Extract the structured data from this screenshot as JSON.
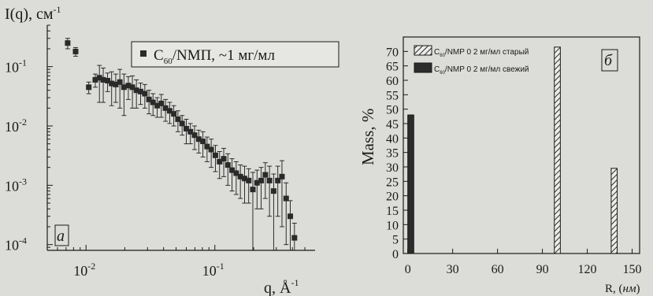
{
  "chart_data": [
    {
      "panel": "а",
      "type": "scatter",
      "ylabel": "I(q), см",
      "ylabel_sup": "-1",
      "xlabel": "q, Å",
      "xlabel_sup": "-1",
      "x_scale": "log",
      "y_scale": "log",
      "xlim": [
        0.005,
        0.6
      ],
      "ylim": [
        8e-05,
        0.5
      ],
      "x_ticks": [
        {
          "value": 0.01,
          "base": "10",
          "exp": "-2"
        },
        {
          "value": 0.1,
          "base": "10",
          "exp": "-1"
        }
      ],
      "y_ticks": [
        {
          "value": 0.1,
          "base": "10",
          "exp": "-1"
        },
        {
          "value": 0.01,
          "base": "10",
          "exp": "-2"
        },
        {
          "value": 0.001,
          "base": "10",
          "exp": "-3"
        },
        {
          "value": 0.0001,
          "base": "10",
          "exp": "-4"
        }
      ],
      "legend": {
        "prefix": "C",
        "sub": "60",
        "rest": "/NMП, ~1 мг/мл",
        "position": "top"
      },
      "series": [
        {
          "name": "C60/NMП, ~1 мг/мл",
          "x": [
            0.0072,
            0.0083,
            0.0105,
            0.0118,
            0.0127,
            0.0136,
            0.0147,
            0.0158,
            0.017,
            0.0183,
            0.0197,
            0.0213,
            0.0229,
            0.0246,
            0.0265,
            0.0286,
            0.0308,
            0.0331,
            0.0357,
            0.0384,
            0.0414,
            0.0446,
            0.048,
            0.0517,
            0.0557,
            0.06,
            0.0646,
            0.0696,
            0.075,
            0.0808,
            0.087,
            0.0937,
            0.101,
            0.1088,
            0.1172,
            0.1262,
            0.136,
            0.1465,
            0.1578,
            0.17,
            0.1831,
            0.1972,
            0.2125,
            0.2289,
            0.2465,
            0.2656,
            0.2861,
            0.3082,
            0.332,
            0.3576,
            0.3852,
            0.415
          ],
          "y": [
            0.25,
            0.18,
            0.045,
            0.06,
            0.065,
            0.06,
            0.058,
            0.052,
            0.05,
            0.055,
            0.045,
            0.048,
            0.045,
            0.04,
            0.038,
            0.035,
            0.028,
            0.025,
            0.022,
            0.024,
            0.02,
            0.018,
            0.016,
            0.013,
            0.011,
            0.009,
            0.008,
            0.007,
            0.006,
            0.0055,
            0.0045,
            0.004,
            0.0032,
            0.0025,
            0.0028,
            0.0022,
            0.0018,
            0.0016,
            0.0014,
            0.0013,
            0.0012,
            0.00085,
            0.0011,
            0.0012,
            0.0015,
            0.0012,
            0.0008,
            0.0012,
            0.0014,
            0.0006,
            0.0003,
            0.00013
          ],
          "err": [
            0.05,
            0.03,
            0.01,
            0.015,
            0.04,
            0.035,
            0.02,
            0.03,
            0.025,
            0.035,
            0.03,
            0.02,
            0.025,
            0.02,
            0.015,
            0.015,
            0.012,
            0.01,
            0.008,
            0.01,
            0.008,
            0.007,
            0.006,
            0.005,
            0.004,
            0.004,
            0.003,
            0.003,
            0.0025,
            0.0025,
            0.002,
            0.002,
            0.0015,
            0.0012,
            0.0014,
            0.0012,
            0.001,
            0.0009,
            0.0008,
            0.0008,
            0.0007,
            0.0008,
            0.0007,
            0.0008,
            0.0009,
            0.0009,
            0.00075,
            0.0009,
            0.0012,
            0.0005,
            0.00025,
            0.0001
          ]
        }
      ]
    },
    {
      "panel": "б",
      "type": "bar",
      "ylabel": "Mass, %",
      "xlabel_prefix": "R, (",
      "xlabel_unit": "нм",
      "xlabel_suffix": ")",
      "xlim": [
        -3,
        155
      ],
      "ylim": [
        0,
        75
      ],
      "x_ticks": [
        0,
        30,
        60,
        90,
        120,
        150
      ],
      "y_ticks": [
        0,
        5,
        10,
        15,
        20,
        25,
        30,
        35,
        40,
        45,
        50,
        55,
        60,
        65,
        70
      ],
      "bar_width": 4,
      "legend_position": "top-left",
      "series": [
        {
          "name": "C60/NMP 0 2 мг/мл старый",
          "label_prefix": "C",
          "label_sub": "60",
          "label_rest": "/NMP 0 2 мг/мл старый",
          "fill": "hatched",
          "color": "#333333",
          "x": [
            100,
            138
          ],
          "values": [
            71.5,
            29.5
          ]
        },
        {
          "name": "C60/NMP 0 2 мг/мл свежий",
          "label_prefix": "C",
          "label_sub": "60",
          "label_rest": "/NMP 0 2 мг/мл свежий",
          "fill": "solid",
          "color": "#2c2c2c",
          "x": [
            2
          ],
          "values": [
            48
          ]
        }
      ]
    }
  ],
  "colors": {
    "background": "#dcdcd8",
    "ink": "#1a1a1a"
  }
}
